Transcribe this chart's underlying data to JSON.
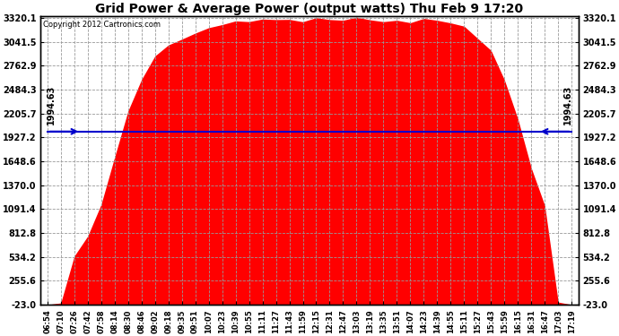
{
  "title": "Grid Power & Average Power (output watts) Thu Feb 9 17:20",
  "copyright": "Copyright 2012 Cartronics.com",
  "avg_power": 1994.63,
  "y_min": -23.0,
  "y_max": 3320.1,
  "ytick_values": [
    -23.0,
    255.6,
    534.2,
    812.8,
    1091.4,
    1370.0,
    1648.6,
    1927.2,
    2205.7,
    2484.3,
    2762.9,
    3041.5,
    3320.1
  ],
  "fill_color": "#FF0000",
  "line_color": "#0000CC",
  "background_color": "#FFFFFF",
  "grid_color": "#999999",
  "x_labels": [
    "06:54",
    "07:10",
    "07:26",
    "07:42",
    "07:58",
    "08:14",
    "08:30",
    "08:46",
    "09:02",
    "09:18",
    "09:35",
    "09:51",
    "10:07",
    "10:23",
    "10:39",
    "10:55",
    "11:11",
    "11:27",
    "11:43",
    "11:59",
    "12:15",
    "12:31",
    "12:47",
    "13:03",
    "13:19",
    "13:35",
    "13:51",
    "14:07",
    "14:23",
    "14:39",
    "14:55",
    "15:11",
    "15:27",
    "15:43",
    "15:59",
    "16:15",
    "16:31",
    "16:47",
    "17:03",
    "17:19"
  ],
  "figwidth": 6.9,
  "figheight": 3.75,
  "dpi": 100
}
